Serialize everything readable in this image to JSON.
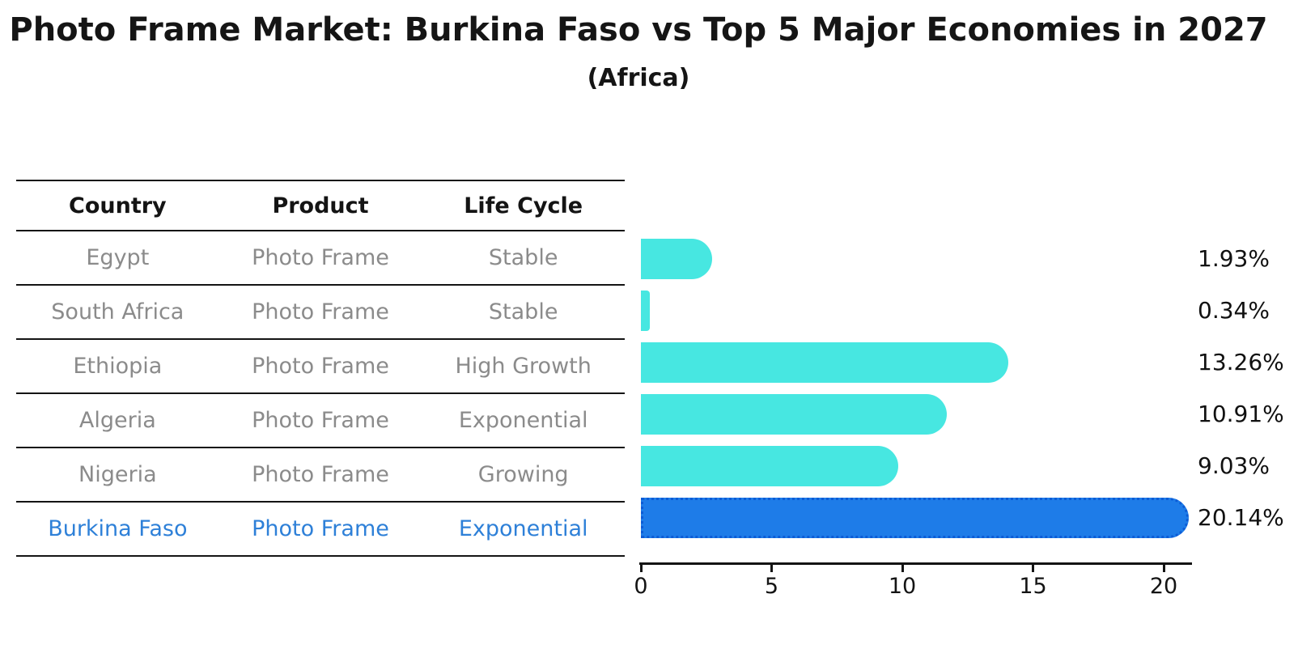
{
  "title": "Photo Frame Market: Burkina Faso vs Top 5 Major Economies in 2027",
  "subtitle": "(Africa)",
  "table": {
    "headers": [
      "Country",
      "Product",
      "Life Cycle"
    ],
    "rows": [
      {
        "country": "Egypt",
        "product": "Photo Frame",
        "life_cycle": "Stable",
        "highlight": false
      },
      {
        "country": "South Africa",
        "product": "Photo Frame",
        "life_cycle": "Stable",
        "highlight": false
      },
      {
        "country": "Ethiopia",
        "product": "Photo Frame",
        "life_cycle": "High Growth",
        "highlight": false
      },
      {
        "country": "Algeria",
        "product": "Photo Frame",
        "life_cycle": "Exponential",
        "highlight": false
      },
      {
        "country": "Nigeria",
        "product": "Photo Frame",
        "life_cycle": "Growing",
        "highlight": false
      },
      {
        "country": "Burkina Faso",
        "product": "Photo Frame",
        "life_cycle": "Exponential",
        "highlight": true
      }
    ]
  },
  "chart_data": {
    "type": "bar",
    "orientation": "horizontal",
    "title": "Photo Frame Market: Burkina Faso vs Top 5 Major Economies in 2027",
    "subtitle": "(Africa)",
    "categories": [
      "Egypt",
      "South Africa",
      "Ethiopia",
      "Algeria",
      "Nigeria",
      "Burkina Faso"
    ],
    "values": [
      1.93,
      0.34,
      13.26,
      10.91,
      9.03,
      20.14
    ],
    "value_labels": [
      "1.93%",
      "0.34%",
      "13.26%",
      "10.91%",
      "9.03%",
      "20.14%"
    ],
    "x_ticks": [
      0,
      5,
      10,
      15,
      20
    ],
    "xlim": [
      0,
      21.1
    ],
    "grid": false,
    "legend": false,
    "bar_color": "#47e7e1",
    "highlight_index": 5,
    "highlight_color": "#1e7ce8",
    "highlight_edge_color": "#0d5cd6",
    "highlight_text_color": "#2e80d8",
    "text_color": "#141414",
    "row_text_color": "#8b8b8b"
  }
}
